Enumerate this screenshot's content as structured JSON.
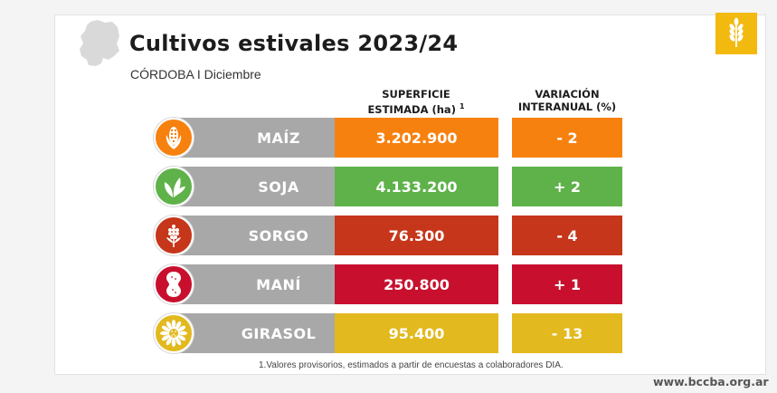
{
  "header": {
    "title": "Cultivos estivales 2023/24",
    "subtitle": "CÓRDOBA I Diciembre",
    "area_col_line1": "SUPERFICIE",
    "area_col_line2": "ESTIMADA (ha)",
    "area_col_sup": "1",
    "var_col_line1": "VARIACIÓN",
    "var_col_line2": "INTERANUAL (%)"
  },
  "chart_data": {
    "type": "table",
    "columns": [
      "SUPERFICIE ESTIMADA (ha)",
      "VARIACIÓN INTERANUAL (%)"
    ],
    "rows": [
      {
        "crop": "MAÍZ",
        "area": "3.202.900",
        "variation": "- 2",
        "color": "#f7810f",
        "icon": "corn-icon"
      },
      {
        "crop": "SOJA",
        "area": "4.133.200",
        "variation": "+ 2",
        "color": "#5fb24a",
        "icon": "soy-leaf-icon"
      },
      {
        "crop": "SORGO",
        "area": "76.300",
        "variation": "- 4",
        "color": "#c6361a",
        "icon": "sorghum-icon"
      },
      {
        "crop": "MANÍ",
        "area": "250.800",
        "variation": "+ 1",
        "color": "#c8102e",
        "icon": "peanut-icon"
      },
      {
        "crop": "GIRASOL",
        "area": "95.400",
        "variation": "- 13",
        "color": "#e2b91e",
        "icon": "sunflower-icon"
      }
    ]
  },
  "footer": {
    "footnote": "1.Valores provisorios, estimados a partir de encuestas a colaboradores DIA.",
    "website": "www.bccba.org.ar"
  },
  "colors": {
    "name_box": "#a8a8a8",
    "logo": "#f2b90f"
  }
}
